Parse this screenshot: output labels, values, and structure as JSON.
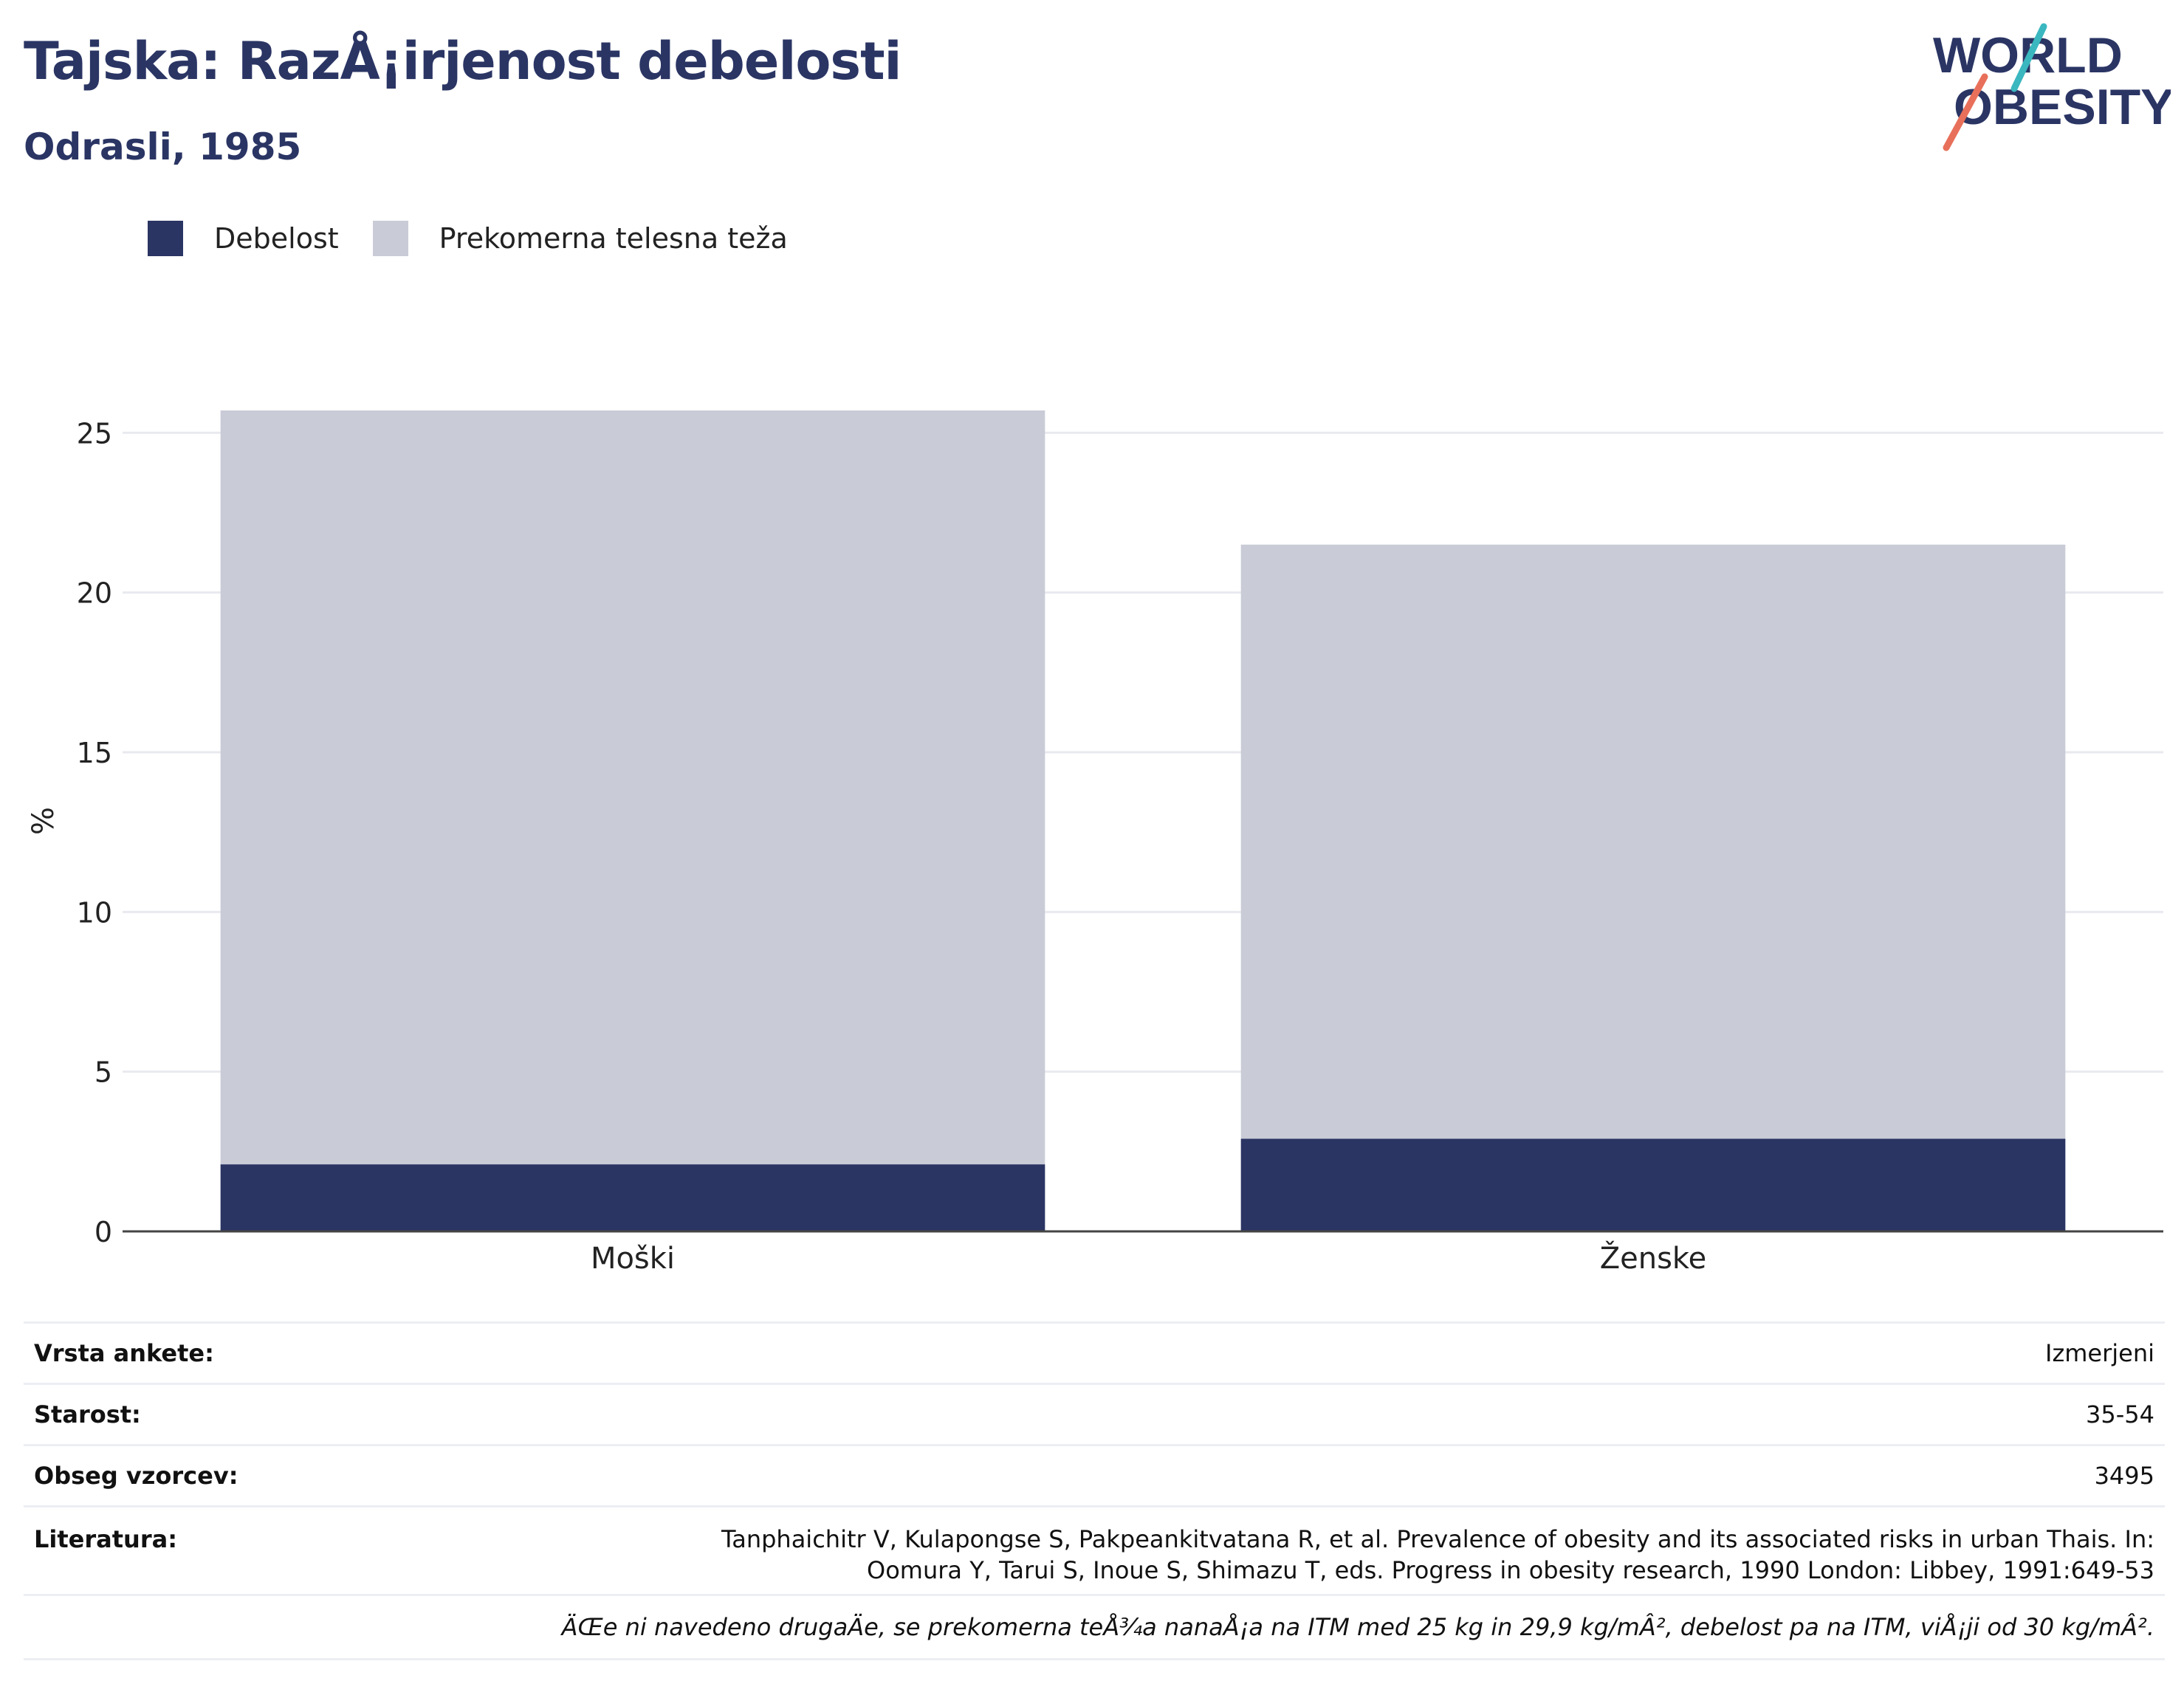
{
  "header": {
    "title": "Tajska: RazÅ¡irjenost debelosti",
    "subtitle": "Odrasli, 1985"
  },
  "logo": {
    "line1": "WORLD",
    "line2": "OBESITY",
    "colors": {
      "navy": "#2a3564",
      "teal": "#3ab7bf",
      "coral": "#e8705a"
    }
  },
  "legend": [
    {
      "label": "Debelost",
      "color": "#2a3564"
    },
    {
      "label": "Prekomerna telesna teža",
      "color": "#c9cbd7"
    }
  ],
  "chart_data": {
    "type": "bar",
    "stacked": true,
    "categories": [
      "Moški",
      "Ženske"
    ],
    "series": [
      {
        "name": "Debelost",
        "color": "#2a3564",
        "values": [
          2.1,
          2.9
        ]
      },
      {
        "name": "Prekomerna telesna teža",
        "color": "#c9cbd7",
        "values": [
          23.6,
          18.6
        ]
      }
    ],
    "ylabel": "%",
    "ylim": [
      0,
      25.7
    ],
    "yticks": [
      0,
      5,
      10,
      15,
      20,
      25
    ],
    "grid": true,
    "legend_position": "top-left"
  },
  "info": {
    "survey_type": {
      "label": "Vrsta ankete:",
      "value": "Izmerjeni"
    },
    "age": {
      "label": "Starost:",
      "value": "35-54"
    },
    "sample_size": {
      "label": "Obseg vzorcev:",
      "value": "3495"
    },
    "references": {
      "label": "Literatura:",
      "value": "Tanphaichitr V, Kulapongse S, Pakpeankitvatana R, et al. Prevalence of obesity and its associated risks in urban Thais. In: Oomura Y, Tarui S, Inoue S, Shimazu T, eds. Progress in obesity research, 1990 London: Libbey, 1991:649-53"
    },
    "note": "ÄŒe ni navedeno drugaÄe, se prekomerna teÅ¾a nanaÅ¡a na ITM med 25 kg in 29,9 kg/mÂ², debelost pa na ITM, viÅ¡ji od 30 kg/mÂ²."
  }
}
